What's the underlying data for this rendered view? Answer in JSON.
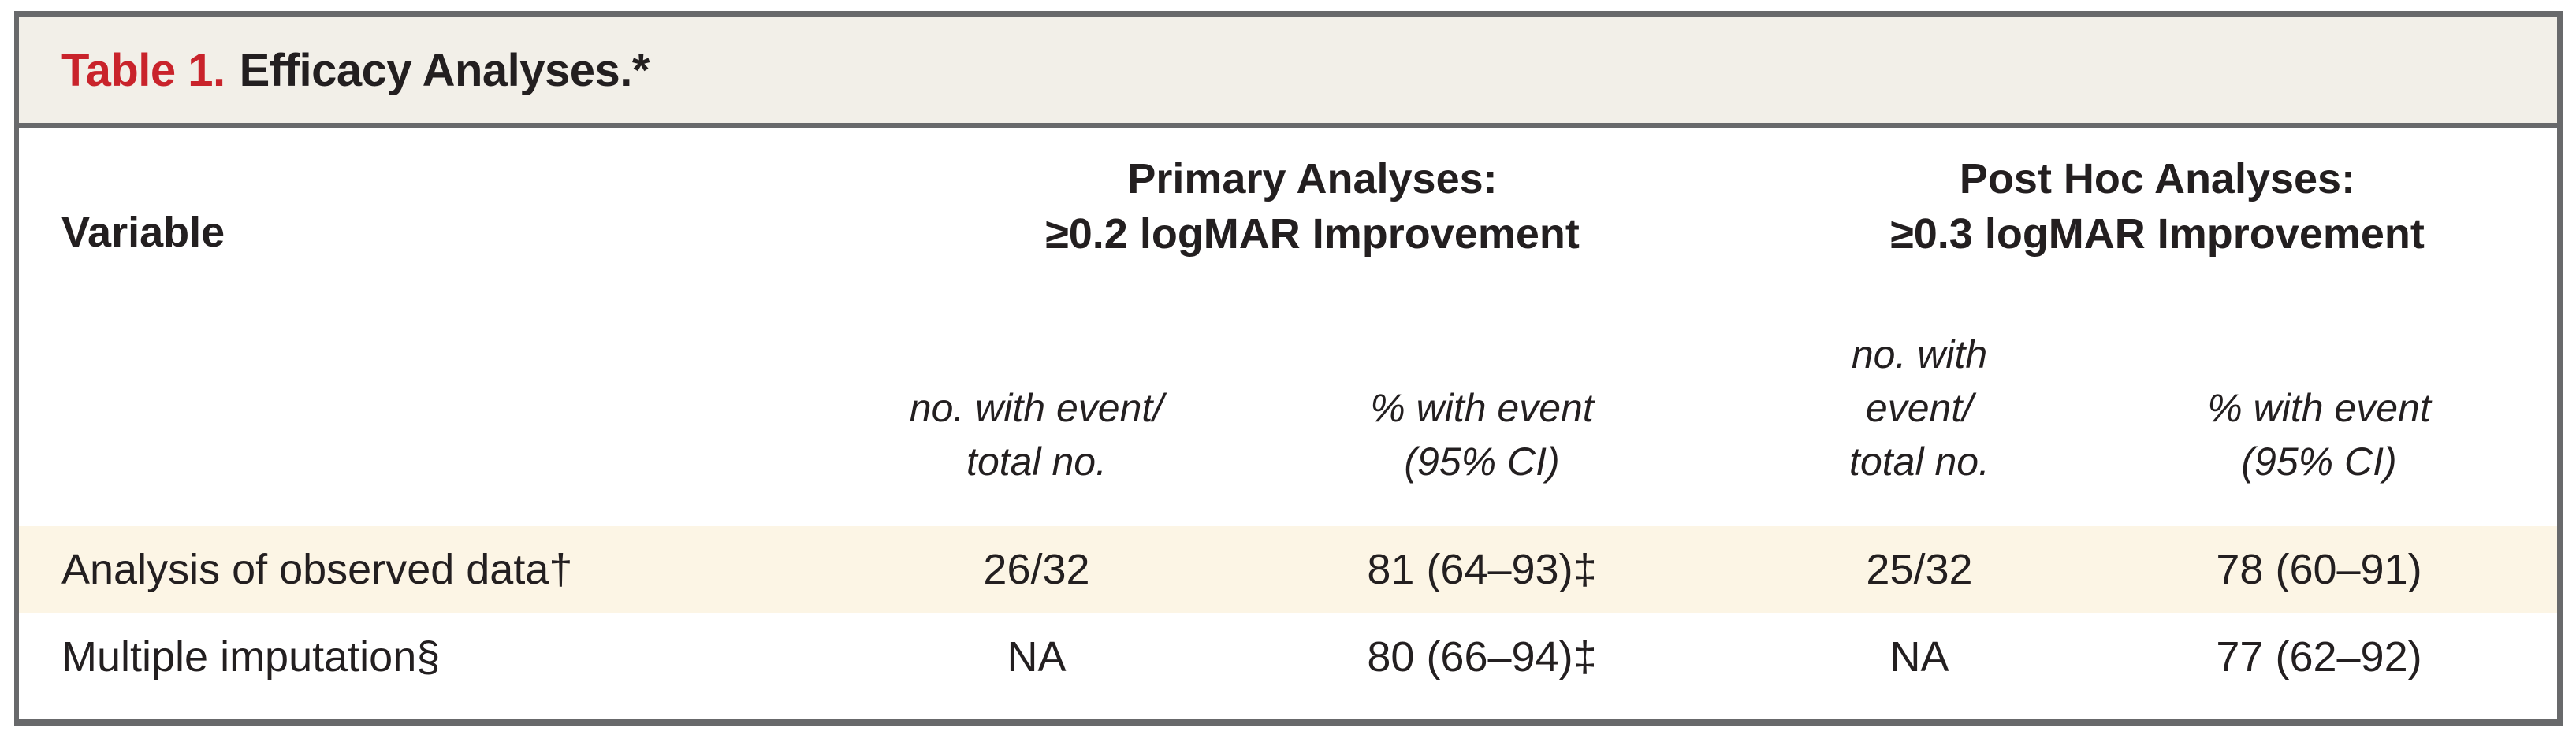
{
  "table": {
    "title_label": "Table 1.",
    "title_text": "Efficacy Analyses.*",
    "variable_header": "Variable",
    "groups": [
      {
        "line1": "Primary Analyses:",
        "line2": "≥0.2 logMAR Improvement"
      },
      {
        "line1": "Post Hoc Analyses:",
        "line2": "≥0.3 logMAR Improvement"
      }
    ],
    "subheaders": [
      {
        "lines": [
          "no. with event/",
          "total no."
        ]
      },
      {
        "lines": [
          "% with event",
          "(95% CI)"
        ]
      },
      {
        "lines": [
          "no. with",
          "event/",
          "total no."
        ]
      },
      {
        "lines": [
          "% with event",
          "(95% CI)"
        ]
      }
    ],
    "rows": [
      {
        "variable": "Analysis of observed data†",
        "values": [
          "26/32",
          "81 (64–93)‡",
          "25/32",
          "78 (60–91)"
        ]
      },
      {
        "variable": "Multiple imputation§",
        "values": [
          "NA",
          "80 (66–94)‡",
          "NA",
          "77 (62–92)"
        ]
      }
    ],
    "colors": {
      "accent_red": "#c9232b",
      "title_band_bg": "#f2efe8",
      "highlight_row_bg": "#fcf5e5",
      "rule_gray": "#68696b",
      "text": "#231f20"
    }
  }
}
